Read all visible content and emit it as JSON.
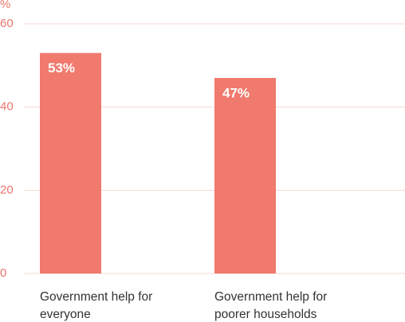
{
  "chart_data": {
    "type": "bar",
    "y_label": "%",
    "categories": [
      "Government help for everyone",
      "Government help for poorer households"
    ],
    "values": [
      53,
      47
    ],
    "value_labels": [
      "53%",
      "47%"
    ],
    "color": "#ef7a6d",
    "ylim": [
      0,
      60
    ],
    "yticks": [
      0,
      20,
      40,
      60
    ],
    "grid": true
  }
}
